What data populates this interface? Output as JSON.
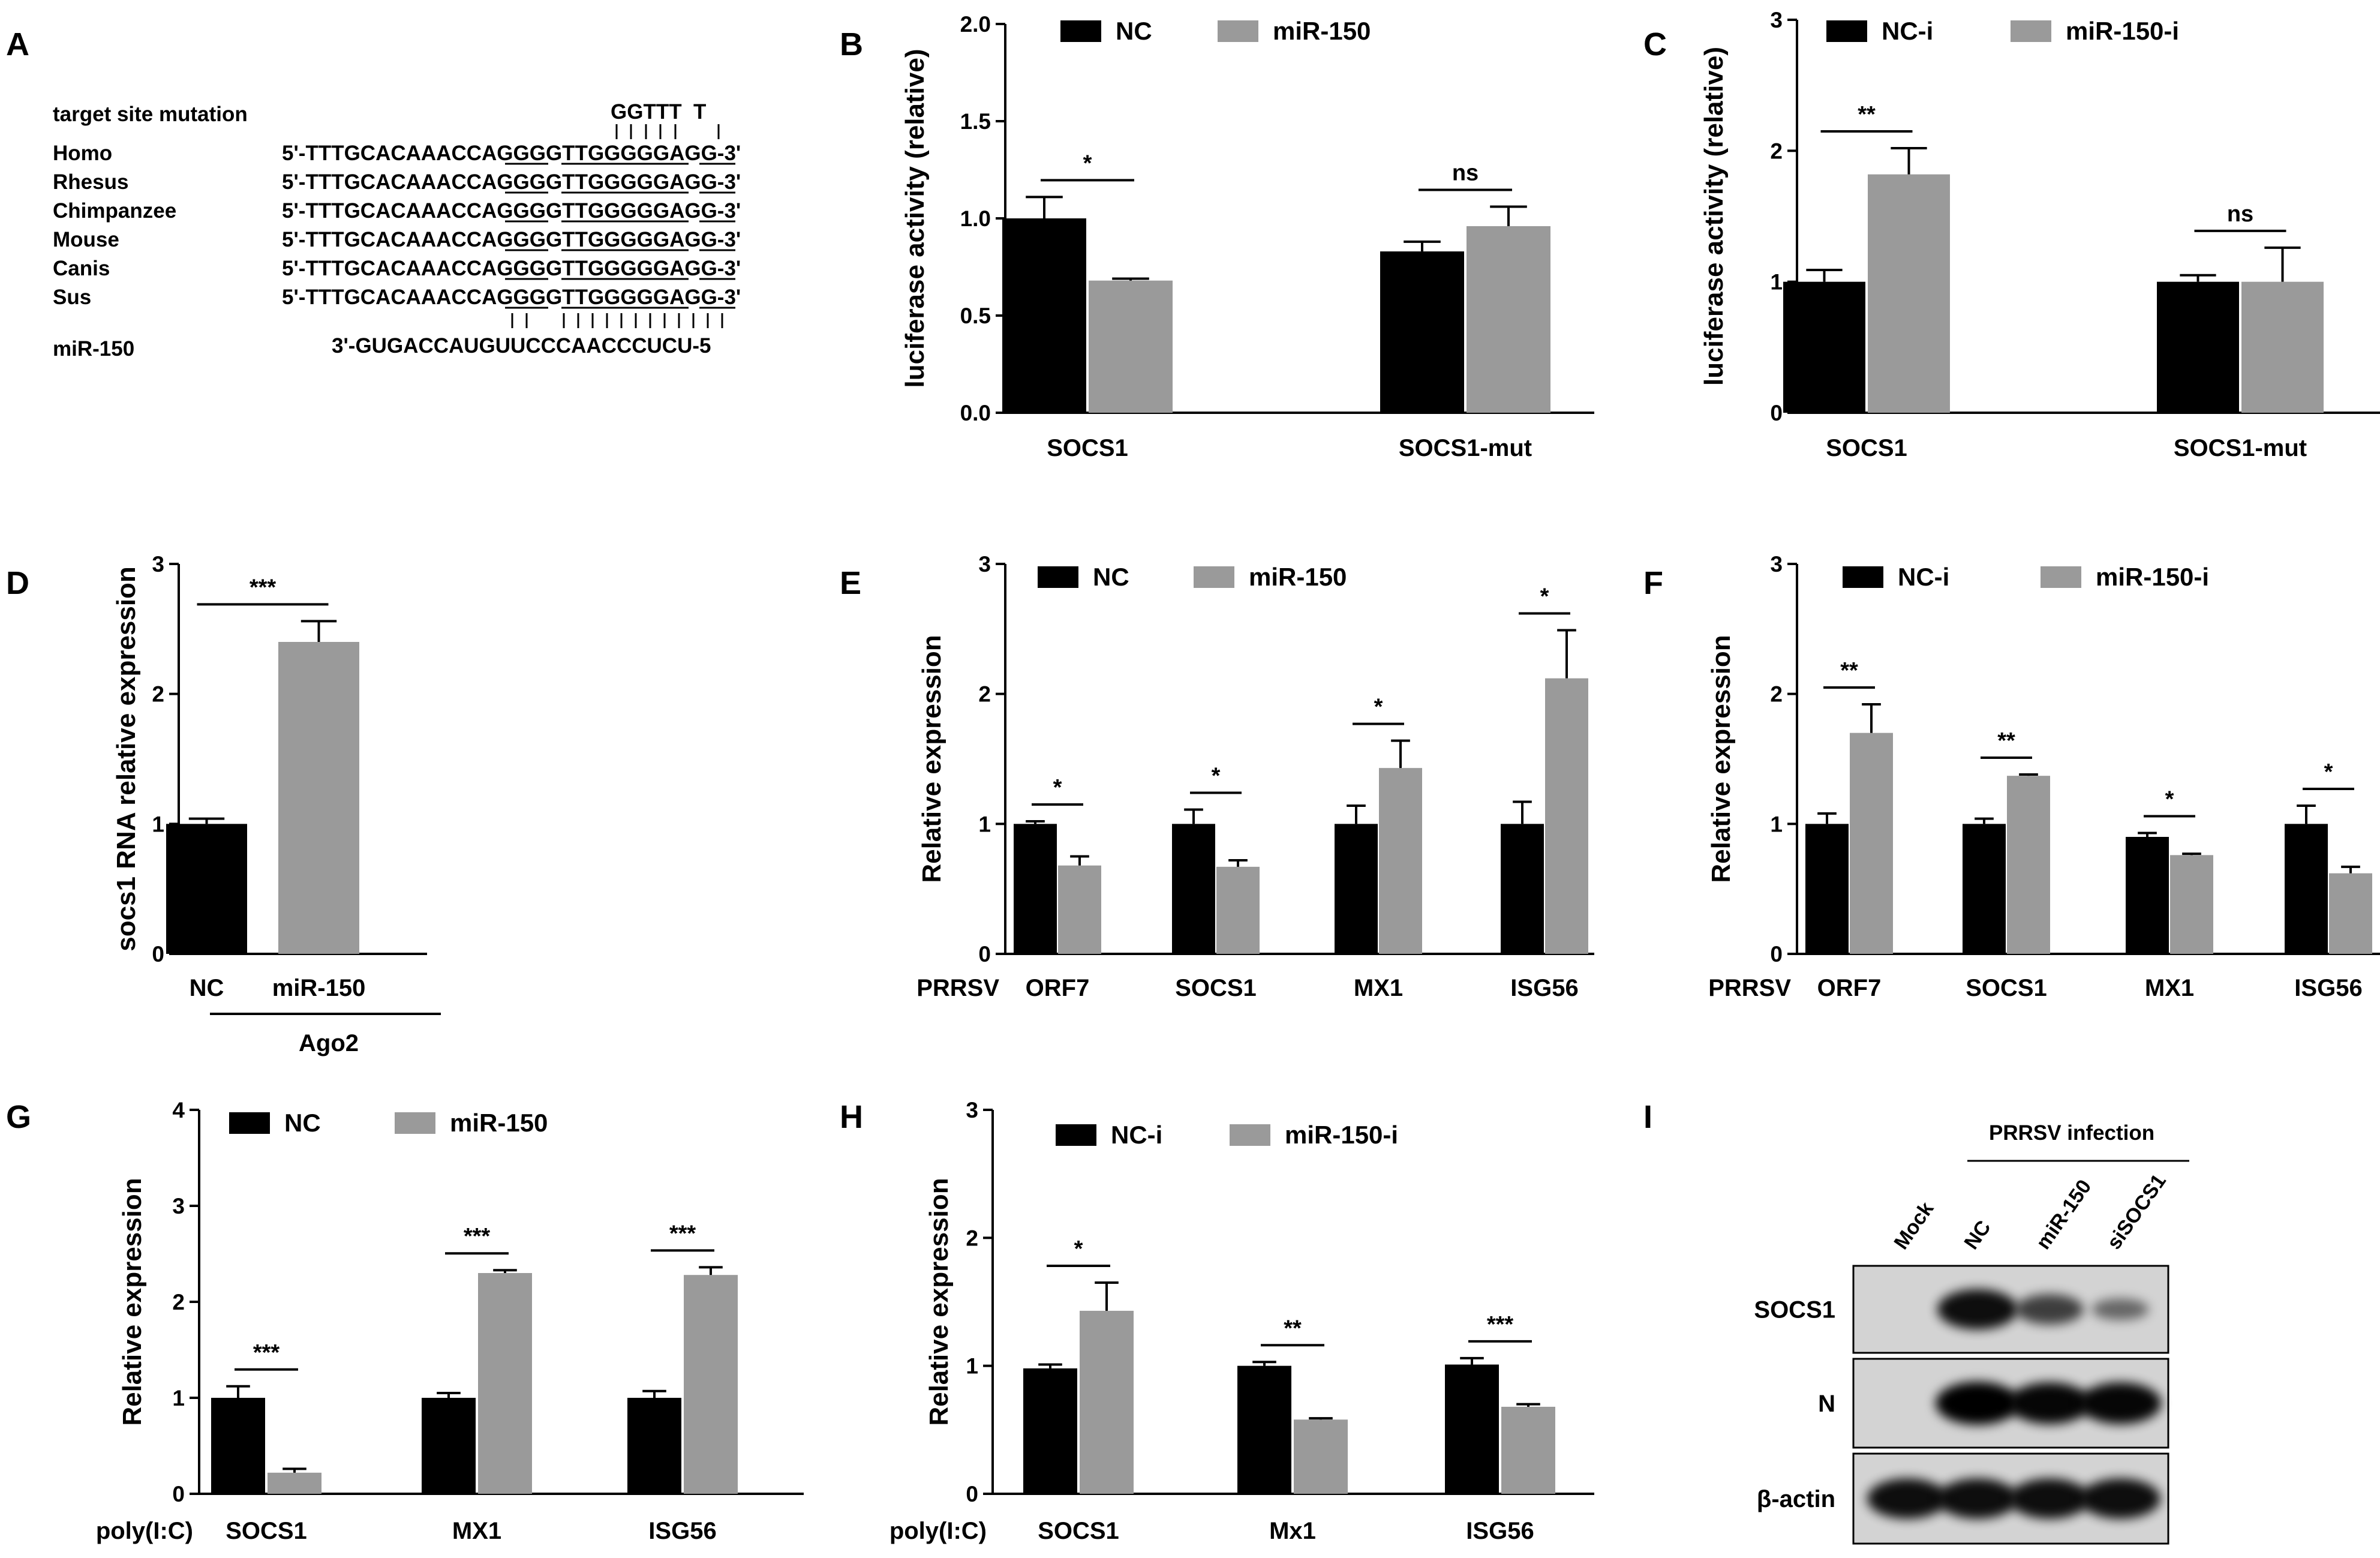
{
  "colors": {
    "nc": "#000000",
    "treat": "#9a9a9a",
    "axis": "#000000",
    "blot_bg": "#d3d3d3"
  },
  "panelA": {
    "letter": "A",
    "mutation_label": "target site mutation",
    "mutation_seq": "GGTTT  T",
    "species": [
      {
        "name": "Homo",
        "seq": "5'-TTTGCACAAACCAGGGGTTGGGGGAGG-3'"
      },
      {
        "name": "Rhesus",
        "seq": "5'-TTTGCACAAACCAGGGGTTGGGGGAGG-3'"
      },
      {
        "name": "Chimpanzee",
        "seq": "5'-TTTGCACAAACCAGGGGTTGGGGGAGG-3'"
      },
      {
        "name": "Mouse",
        "seq": "5'-TTTGCACAAACCAGGGGTTGGGGGAGG-3'"
      },
      {
        "name": "Canis",
        "seq": "5'-TTTGCACAAACCAGGGGTTGGGGGAGG-3'"
      },
      {
        "name": "Sus",
        "seq": "5'-TTTGCACAAACCAGGGGTTGGGGGAGG-3'"
      }
    ],
    "mirna_name": "miR-150",
    "mirna_seq": "3'-GUGACCAUGUUCCCAACCCUCU-5"
  },
  "panelI": {
    "letter": "I",
    "header": "PRRSV infection",
    "lanes": [
      "Mock",
      "NC",
      "miR-150",
      "siSOCS1"
    ],
    "bands": [
      {
        "name": "SOCS1",
        "intensity": [
          0.0,
          0.9,
          0.55,
          0.25
        ]
      },
      {
        "name": "N",
        "intensity": [
          0.0,
          1.0,
          0.95,
          0.95
        ]
      },
      {
        "name": "β-actin",
        "intensity": [
          0.9,
          0.9,
          0.9,
          0.9
        ]
      }
    ]
  },
  "chart_data": [
    {
      "id": "B",
      "letter": "B",
      "type": "bar",
      "series_names": [
        "NC",
        "miR-150"
      ],
      "categories": [
        "SOCS1",
        "SOCS1-mut"
      ],
      "values": [
        [
          1.0,
          0.68
        ],
        [
          0.83,
          0.96
        ]
      ],
      "errors": [
        [
          0.11,
          0.01
        ],
        [
          0.05,
          0.1
        ]
      ],
      "sig": [
        "*",
        "ns"
      ],
      "ylabel": "luciferase activity (relative)",
      "ylim": [
        0,
        2.0
      ],
      "yticks": [
        "0.0",
        "0.5",
        "1.0",
        "1.5",
        "2.0"
      ],
      "prefix": "",
      "subgroup": "",
      "title": ""
    },
    {
      "id": "C",
      "letter": "C",
      "type": "bar",
      "series_names": [
        "NC-i",
        "miR-150-i"
      ],
      "categories": [
        "SOCS1",
        "SOCS1-mut"
      ],
      "values": [
        [
          1.0,
          1.82
        ],
        [
          1.0,
          1.0
        ]
      ],
      "errors": [
        [
          0.09,
          0.2
        ],
        [
          0.05,
          0.26
        ]
      ],
      "sig": [
        "**",
        "ns"
      ],
      "ylabel": "luciferase activity (relative)",
      "ylim": [
        0,
        3
      ],
      "yticks": [
        "0",
        "1",
        "2",
        "3"
      ],
      "prefix": "",
      "subgroup": "",
      "title": ""
    },
    {
      "id": "D",
      "letter": "D",
      "type": "bar",
      "series_names": [
        "NC",
        "miR-150"
      ],
      "categories": [
        "NC",
        "miR-150"
      ],
      "values": [
        [
          1.0,
          2.4
        ]
      ],
      "errors": [
        [
          0.04,
          0.16
        ]
      ],
      "sig": [
        "***"
      ],
      "ylabel": "socs1 RNA relative expression",
      "ylim": [
        0,
        3
      ],
      "yticks": [
        "0",
        "1",
        "2",
        "3"
      ],
      "prefix": "",
      "subgroup": "Ago2",
      "title": ""
    },
    {
      "id": "E",
      "letter": "E",
      "type": "bar",
      "series_names": [
        "NC",
        "miR-150"
      ],
      "categories": [
        "ORF7",
        "SOCS1",
        "MX1",
        "ISG56"
      ],
      "values": [
        [
          1.0,
          0.68
        ],
        [
          1.0,
          0.67
        ],
        [
          1.0,
          1.43
        ],
        [
          1.0,
          2.12
        ]
      ],
      "errors": [
        [
          0.02,
          0.07
        ],
        [
          0.11,
          0.05
        ],
        [
          0.14,
          0.21
        ],
        [
          0.17,
          0.37
        ]
      ],
      "sig": [
        "*",
        "*",
        "*",
        "*"
      ],
      "ylabel": "Relative expression",
      "ylim": [
        0,
        3
      ],
      "yticks": [
        "0",
        "1",
        "2",
        "3"
      ],
      "prefix": "PRRSV",
      "subgroup": "",
      "title": ""
    },
    {
      "id": "F",
      "letter": "F",
      "type": "bar",
      "series_names": [
        "NC-i",
        "miR-150-i"
      ],
      "categories": [
        "ORF7",
        "SOCS1",
        "MX1",
        "ISG56"
      ],
      "values": [
        [
          1.0,
          1.7
        ],
        [
          1.0,
          1.37
        ],
        [
          0.9,
          0.76
        ],
        [
          1.0,
          0.62
        ]
      ],
      "errors": [
        [
          0.08,
          0.22
        ],
        [
          0.04,
          0.01
        ],
        [
          0.03,
          0.01
        ],
        [
          0.14,
          0.05
        ]
      ],
      "sig": [
        "**",
        "**",
        "*",
        "*"
      ],
      "ylabel": "Relative expression",
      "ylim": [
        0,
        3
      ],
      "yticks": [
        "0",
        "1",
        "2",
        "3"
      ],
      "prefix": "PRRSV",
      "subgroup": "",
      "title": ""
    },
    {
      "id": "G",
      "letter": "G",
      "type": "bar",
      "series_names": [
        "NC",
        "miR-150"
      ],
      "categories": [
        "SOCS1",
        "MX1",
        "ISG56"
      ],
      "values": [
        [
          1.0,
          0.22
        ],
        [
          1.0,
          2.3
        ],
        [
          1.0,
          2.28
        ]
      ],
      "errors": [
        [
          0.12,
          0.04
        ],
        [
          0.05,
          0.03
        ],
        [
          0.07,
          0.08
        ]
      ],
      "sig": [
        "***",
        "***",
        "***"
      ],
      "ylabel": "Relative expression",
      "ylim": [
        0,
        4
      ],
      "yticks": [
        "0",
        "1",
        "2",
        "3",
        "4"
      ],
      "prefix": "poly(I:C)",
      "subgroup": "",
      "title": ""
    },
    {
      "id": "H",
      "letter": "H",
      "type": "bar",
      "series_names": [
        "NC-i",
        "miR-150-i"
      ],
      "categories": [
        "SOCS1",
        "Mx1",
        "ISG56"
      ],
      "values": [
        [
          0.98,
          1.43
        ],
        [
          1.0,
          0.58
        ],
        [
          1.01,
          0.68
        ]
      ],
      "errors": [
        [
          0.03,
          0.22
        ],
        [
          0.03,
          0.01
        ],
        [
          0.05,
          0.02
        ]
      ],
      "sig": [
        "*",
        "**",
        "***"
      ],
      "ylabel": "Relative expression",
      "ylim": [
        0,
        3
      ],
      "yticks": [
        "0",
        "1",
        "2",
        "3"
      ],
      "prefix": "poly(I:C)",
      "subgroup": "",
      "title": ""
    }
  ]
}
